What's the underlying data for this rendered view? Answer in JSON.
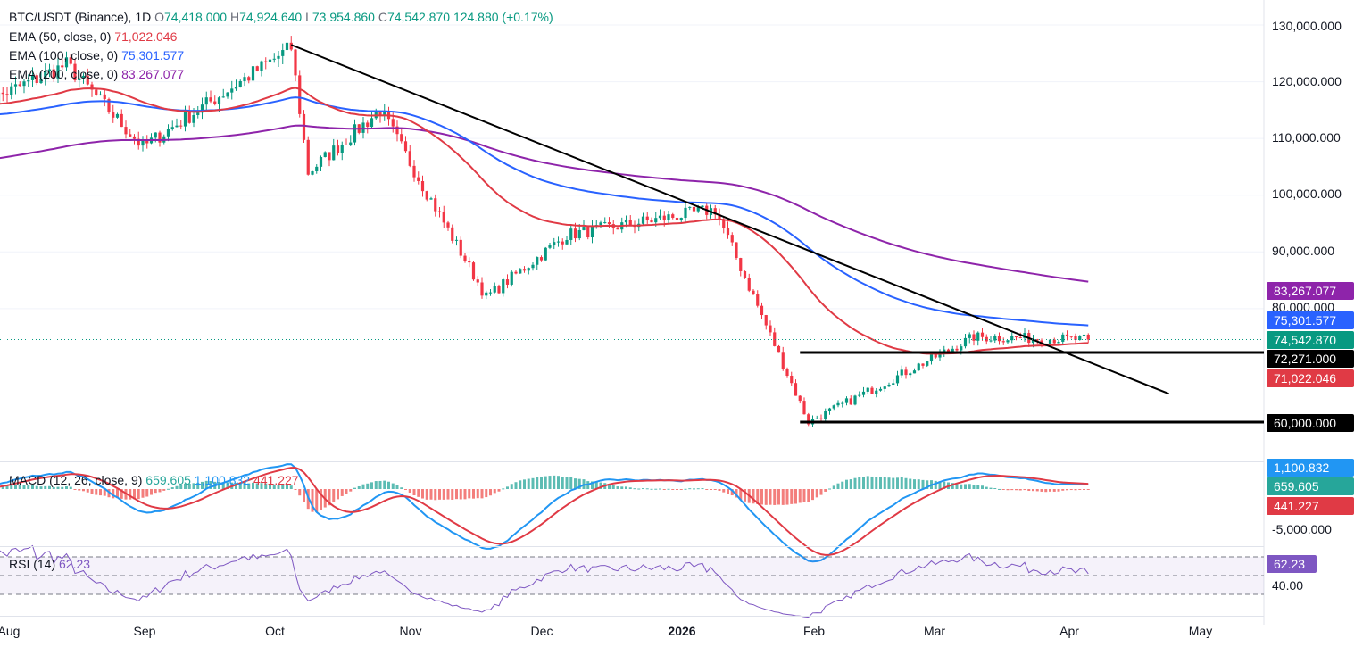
{
  "header": {
    "symbol": "BTC/USDT (Binance), 1D",
    "o_label": "O",
    "o": "74,418.000",
    "h_label": "H",
    "h": "74,924.640",
    "l_label": "L",
    "l": "73,954.860",
    "c_label": "C",
    "c": "74,542.870",
    "change": "124.880 (+0.17%)"
  },
  "indicators": [
    {
      "label": "EMA (50, close, 0)",
      "value": "71,022.046",
      "color": "#e03a45"
    },
    {
      "label": "EMA (100, close, 0)",
      "value": "75,301.577",
      "color": "#2962ff"
    },
    {
      "label": "EMA (200, close, 0)",
      "value": "83,267.077",
      "color": "#8e24aa"
    }
  ],
  "macd": {
    "label": "MACD (12, 26, close, 9)",
    "hist": "659.605",
    "macd": "1,100.832",
    "signal": "441.227"
  },
  "rsi": {
    "label": "RSI (14)",
    "value": "62.23"
  },
  "price_axis": [
    "130,000.000",
    "120,000.000",
    "110,000.000",
    "100,000.000",
    "90,000.000",
    "80,000.000"
  ],
  "price_tags": [
    {
      "text": "83,267.077",
      "value": 83267.077,
      "color": "#8e24aa"
    },
    {
      "text": "75,301.577",
      "value": 75301.577,
      "color": "#2962ff"
    },
    {
      "text": "74,542.870",
      "value": 74542.87,
      "color": "#089981"
    },
    {
      "text": "72,271.000",
      "value": 72271,
      "color": "#000000"
    },
    {
      "text": "71,022.046",
      "value": 71022.046,
      "color": "#e03a45"
    },
    {
      "text": "60,000.000",
      "value": 60000,
      "color": "#000000"
    }
  ],
  "macd_tags": [
    {
      "text": "1,100.832",
      "value": 1100.832,
      "color": "#2196f3"
    },
    {
      "text": "659.605",
      "value": 659.605,
      "color": "#26a69a"
    },
    {
      "text": "441.227",
      "value": 441.227,
      "color": "#e03a45"
    }
  ],
  "macd_axis": "-5,000.000",
  "rsi_tag": {
    "text": "62.23",
    "color": "#7e57c2"
  },
  "rsi_axis": "40.00",
  "x_axis": [
    {
      "label": "Aug",
      "bold": false
    },
    {
      "label": "Sep",
      "bold": false
    },
    {
      "label": "Oct",
      "bold": false
    },
    {
      "label": "Nov",
      "bold": false
    },
    {
      "label": "Dec",
      "bold": false
    },
    {
      "label": "2026",
      "bold": true
    },
    {
      "label": "Feb",
      "bold": false
    },
    {
      "label": "Mar",
      "bold": false
    },
    {
      "label": "Apr",
      "bold": false
    },
    {
      "label": "May",
      "bold": false
    }
  ],
  "chart_data": {
    "type": "candlestick",
    "symbol": "BTC/USDT",
    "timeframe": "1D",
    "ylim": [
      55000,
      132000
    ],
    "key_points": [
      {
        "date": "2025-07-25",
        "close": 116000
      },
      {
        "date": "2025-08-14",
        "close": 123000
      },
      {
        "date": "2025-09-01",
        "close": 108500
      },
      {
        "date": "2025-10-06",
        "close": 126000
      },
      {
        "date": "2025-10-10",
        "close": 104000
      },
      {
        "date": "2025-10-27",
        "close": 115000
      },
      {
        "date": "2025-11-21",
        "close": 82000
      },
      {
        "date": "2025-12-10",
        "close": 93000
      },
      {
        "date": "2026-01-14",
        "close": 97500
      },
      {
        "date": "2026-02-05",
        "close": 60000
      },
      {
        "date": "2026-03-16",
        "close": 75000
      },
      {
        "date": "2026-04-12",
        "close": 74542.87
      }
    ],
    "ema": [
      {
        "name": "EMA 50",
        "color": "#e03a45",
        "current": 71022.046
      },
      {
        "name": "EMA 100",
        "color": "#2962ff",
        "current": 75301.577
      },
      {
        "name": "EMA 200",
        "color": "#8e24aa",
        "current": 83267.077
      }
    ],
    "trendline": {
      "from": {
        "date": "2025-10-06",
        "value": 126500
      },
      "to": {
        "date": "2026-05-01",
        "value": 65000
      }
    },
    "support_lines": [
      72271,
      60000
    ],
    "macd": {
      "macd": 1100.832,
      "signal": 441.227,
      "histogram": 659.605
    },
    "rsi": {
      "period": 14,
      "value": 62.23
    }
  }
}
